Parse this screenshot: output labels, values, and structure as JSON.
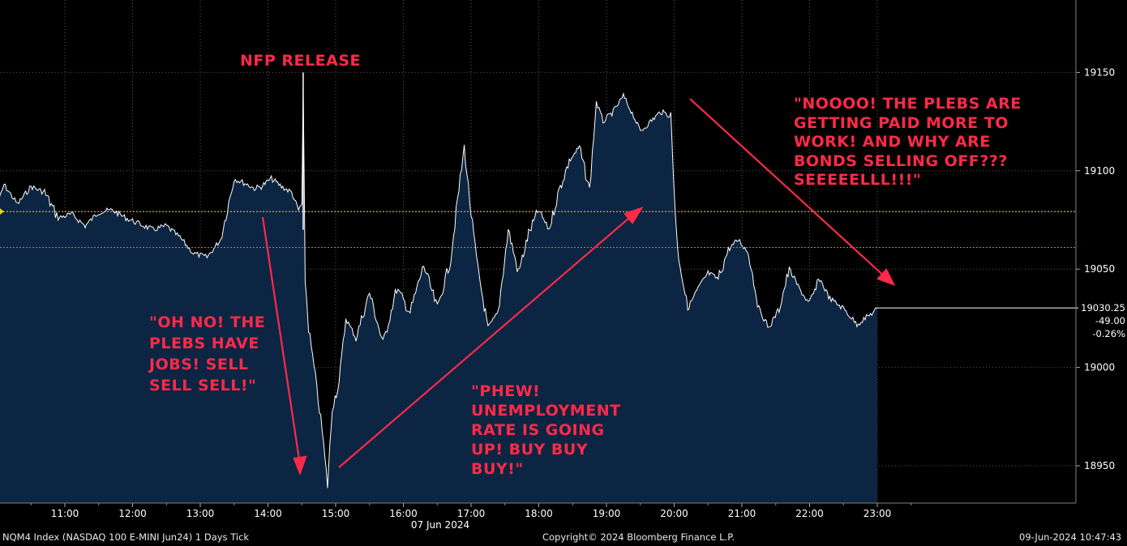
{
  "chart_data": {
    "type": "line",
    "ticker_line": "NQM4 Index (NASDAQ 100 E-MINI Jun24) 1 Days  Tick",
    "copyright": "Copyright© 2024 Bloomberg Finance L.P.",
    "timestamp": "09-Jun-2024 10:47:43",
    "date_label": "07 Jun 2024",
    "x_ticks": [
      "11:00",
      "12:00",
      "13:00",
      "14:00",
      "15:00",
      "16:00",
      "17:00",
      "18:00",
      "19:00",
      "20:00",
      "21:00",
      "22:00",
      "23:00"
    ],
    "y_ticks": [
      18950,
      19000,
      19050,
      19100,
      19150
    ],
    "ylim": [
      18932,
      19200
    ],
    "xlim_hours": [
      10.0,
      26.0
    ],
    "prev_close": 19079.25,
    "reference_level": 19061,
    "last": {
      "price": "19030.25",
      "change": "-49.00",
      "pct": "-0.26%"
    },
    "series": [
      {
        "x": [
          10.0,
          10.1,
          10.3,
          10.5,
          10.7,
          10.9,
          11.1,
          11.3,
          11.5,
          11.7,
          11.9,
          12.1,
          12.3,
          12.5,
          12.7,
          12.9,
          13.1,
          13.3,
          13.5,
          13.7,
          13.8,
          13.9,
          14.05,
          14.2,
          14.35,
          14.45,
          14.5,
          14.52,
          14.55,
          14.6,
          14.7,
          14.8,
          14.88,
          14.95,
          15.05,
          15.15,
          15.3,
          15.5,
          15.7,
          15.9,
          16.1,
          16.3,
          16.5,
          16.7,
          16.8,
          16.9,
          17.0,
          17.1,
          17.25,
          17.4,
          17.55,
          17.7,
          17.85,
          18.0,
          18.15,
          18.3,
          18.45,
          18.6,
          18.75,
          18.85,
          18.95,
          19.1,
          19.25,
          19.4,
          19.5,
          19.65,
          19.8,
          19.95,
          20.0,
          20.05,
          20.2,
          20.35,
          20.5,
          20.65,
          20.8,
          20.95,
          21.1,
          21.25,
          21.4,
          21.55,
          21.7,
          21.85,
          22.0,
          22.15,
          22.3,
          22.5,
          22.7,
          22.9,
          23.0
        ],
        "y": [
          19080,
          19093,
          19083,
          19092,
          19089,
          19076,
          19078,
          19072,
          19079,
          19080,
          19076,
          19073,
          19070,
          19072,
          19066,
          19058,
          19056,
          19065,
          19096,
          19093,
          19091,
          19092,
          19096,
          19092,
          19089,
          19080,
          19083,
          19140,
          19045,
          19020,
          18995,
          18968,
          18940,
          18980,
          18992,
          19025,
          19015,
          19038,
          19012,
          19040,
          19028,
          19052,
          19030,
          19055,
          19085,
          19112,
          19078,
          19050,
          19020,
          19028,
          19070,
          19048,
          19068,
          19080,
          19070,
          19090,
          19105,
          19112,
          19090,
          19135,
          19125,
          19130,
          19138,
          19128,
          19120,
          19125,
          19130,
          19128,
          19090,
          19060,
          19030,
          19040,
          19048,
          19045,
          19060,
          19065,
          19058,
          19030,
          19020,
          19030,
          19050,
          19040,
          19032,
          19045,
          19035,
          19030,
          19022,
          19027,
          19030
        ]
      }
    ]
  },
  "annotations": {
    "nfp": "NFP RELEASE",
    "oh_no": "\"OH NO! THE\nPLEBS HAVE\nJOBS! SELL\nSELL SELL!\"",
    "phew": "\"PHEW!\nUNEMPLOYMENT\nRATE IS GOING\nUP! BUY BUY\nBUY!\"",
    "noooo": "\"NOOOO! THE PLEBS ARE\nGETTING PAID MORE TO\nWORK! AND WHY ARE\nBONDS SELLING OFF???\nSEEEEELLL!!!\""
  },
  "colors": {
    "background": "#000000",
    "area_fill": "#0c2543",
    "line": "#ffffff",
    "annotation": "#ff2a48",
    "prev_close_line": "#e6d200",
    "reference_line": "#c88020",
    "grid": "#5a5a5a"
  }
}
